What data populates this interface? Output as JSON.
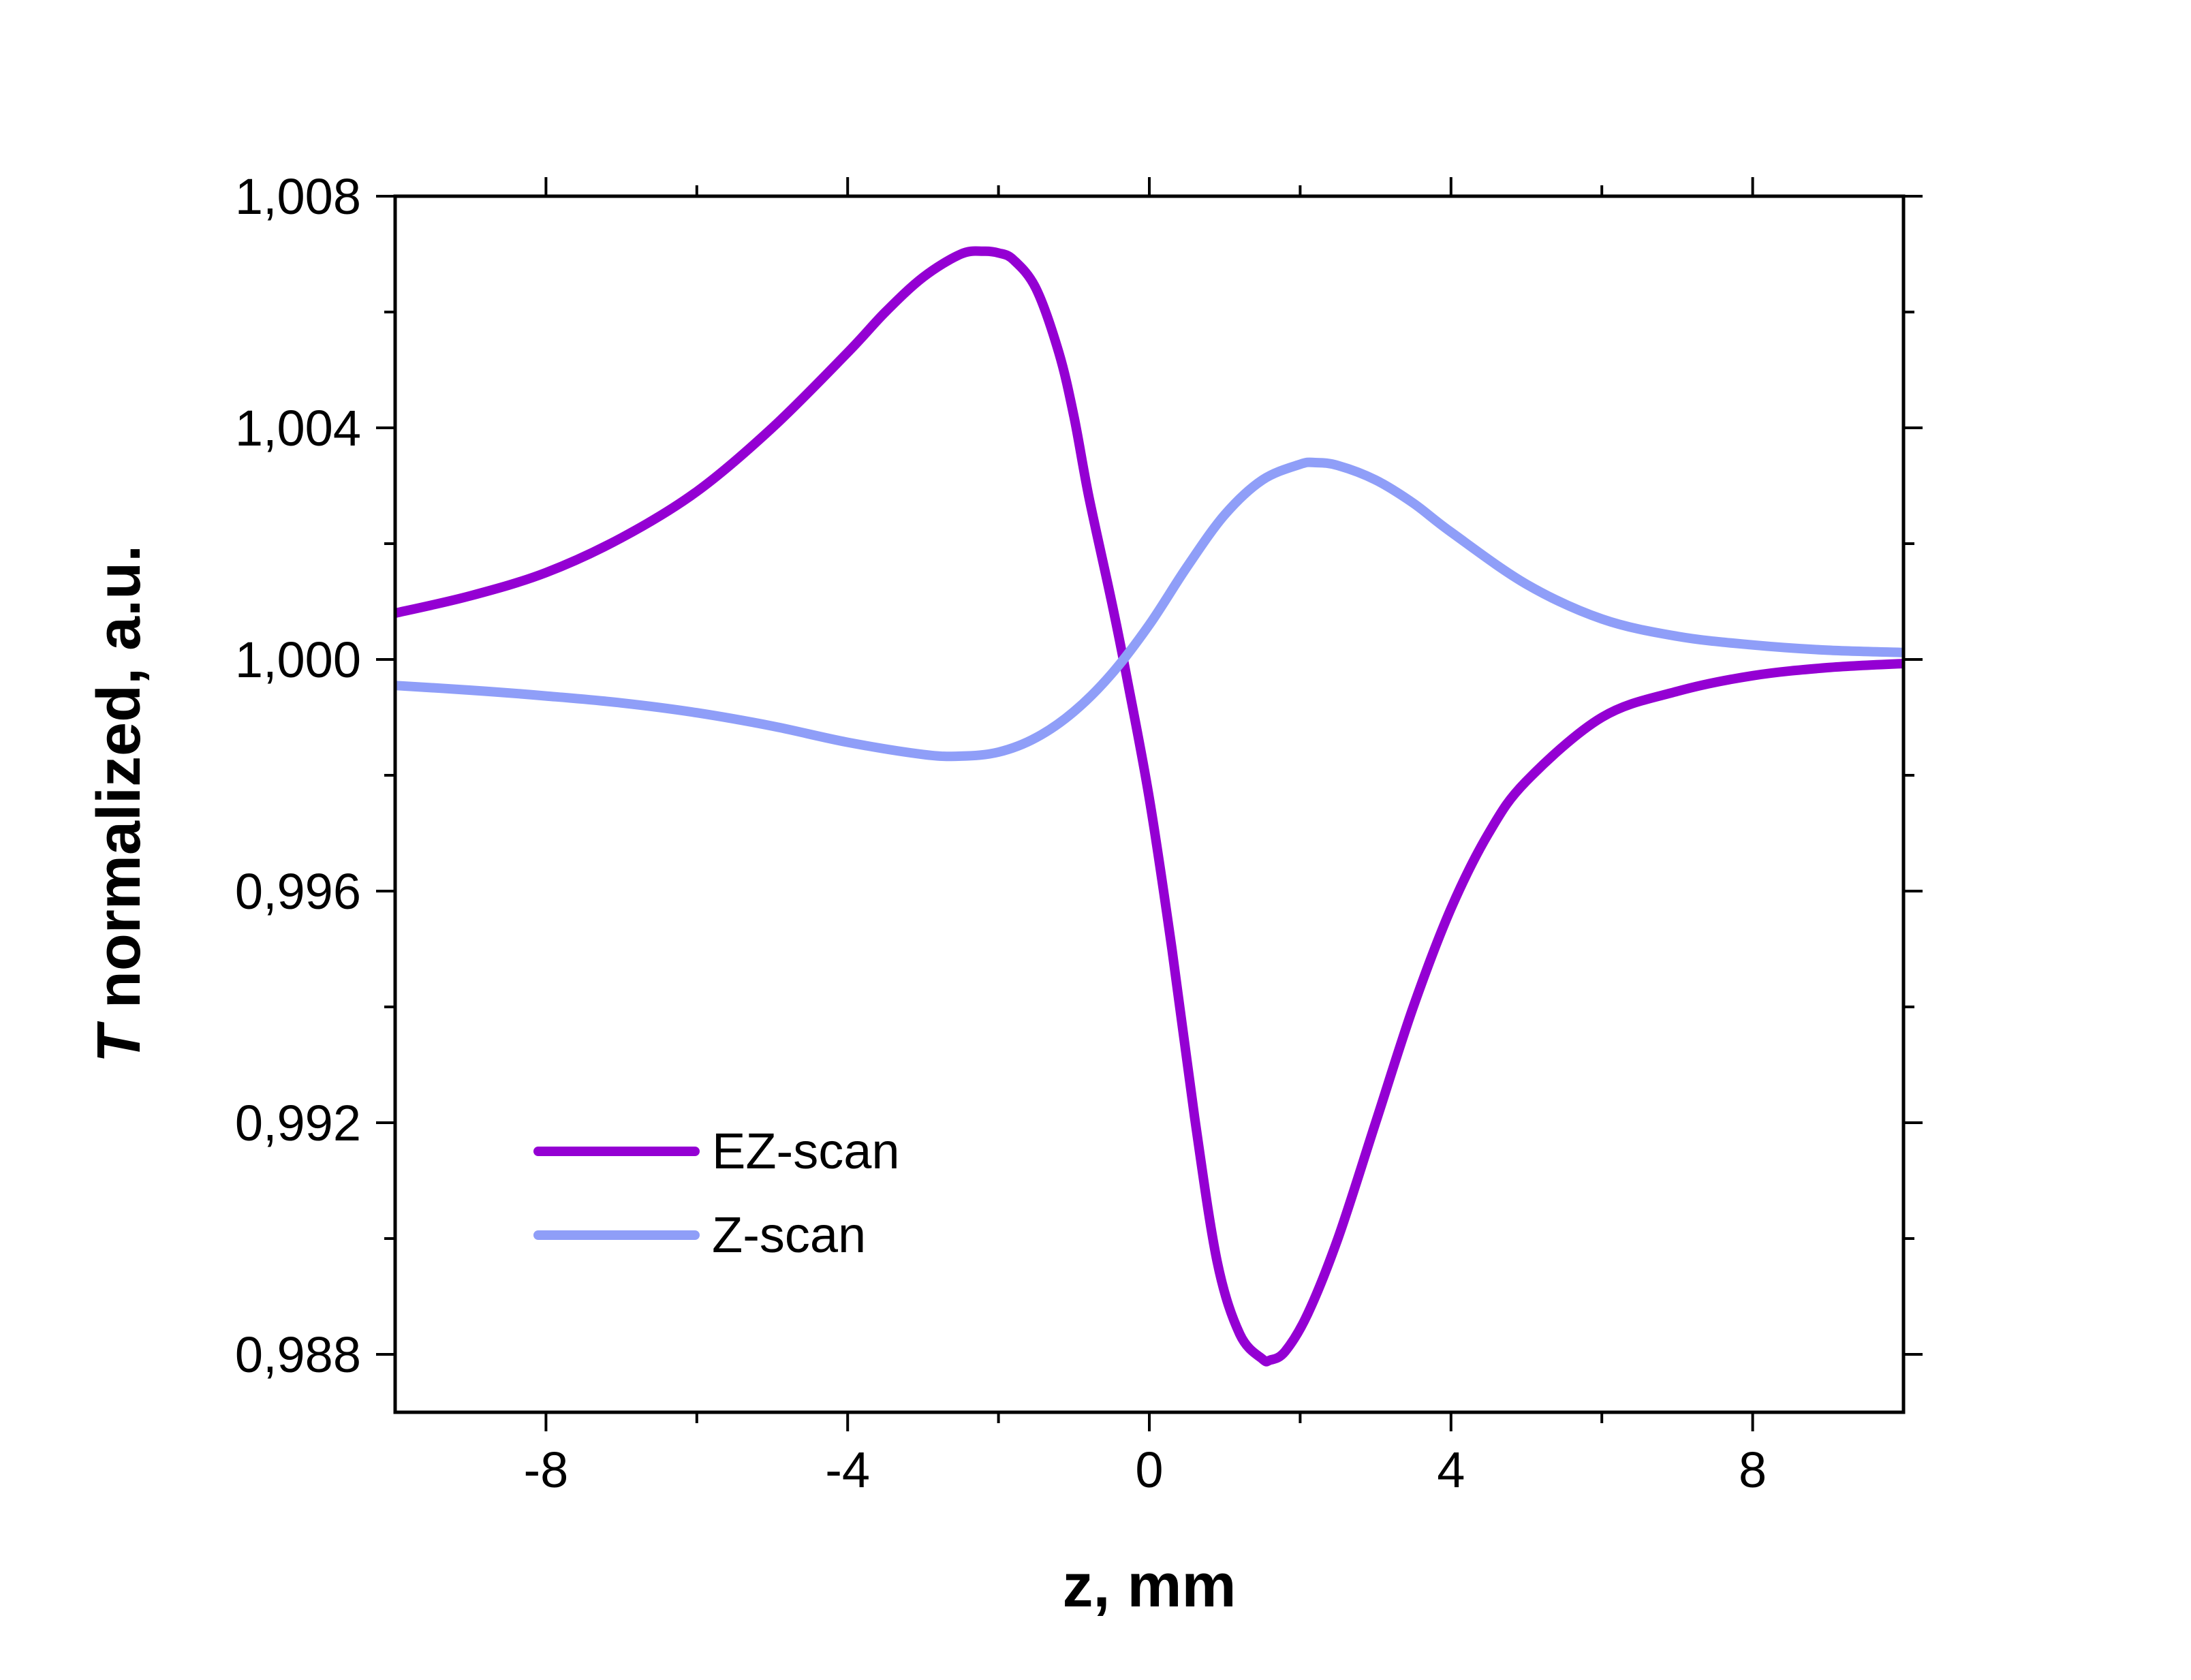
{
  "chart_data": {
    "type": "line",
    "title": "",
    "xlabel": "z, mm",
    "ylabel": {
      "italic_part": "T",
      "rest": " normalized, a.u."
    },
    "xlim": [
      -10,
      10
    ],
    "ylim": [
      0.987,
      1.008
    ],
    "x_ticks": [
      -8,
      -4,
      0,
      4,
      8
    ],
    "x_tick_labels": [
      "-8",
      "-4",
      "0",
      "4",
      "8"
    ],
    "y_ticks": [
      0.988,
      0.992,
      0.996,
      1.0,
      1.004,
      1.008
    ],
    "y_tick_labels": [
      "0,988",
      "0,992",
      "0,996",
      "1,000",
      "1,004",
      "1,008"
    ],
    "grid": false,
    "legend_position": "bottom-left",
    "series": [
      {
        "name": "EZ-scan",
        "color": "#9400D3",
        "x": [
          -10,
          -9,
          -8,
          -7,
          -6,
          -5,
          -4,
          -3.5,
          -3,
          -2.5,
          -2.2,
          -2.0,
          -1.8,
          -1.5,
          -1.2,
          -1.0,
          -0.8,
          -0.5,
          -0.3,
          0.0,
          0.3,
          0.6,
          0.9,
          1.2,
          1.5,
          1.6,
          1.8,
          2.1,
          2.5,
          3.0,
          3.5,
          4.0,
          4.5,
          5.0,
          6.0,
          7.0,
          8.0,
          9.0,
          10.0
        ],
        "y": [
          1.0008,
          1.0011,
          1.0015,
          1.0021,
          1.0029,
          1.004,
          1.0053,
          1.006,
          1.0066,
          1.007,
          1.00705,
          1.00702,
          1.0069,
          1.0064,
          1.0053,
          1.0042,
          1.0028,
          1.001,
          0.9997,
          0.9976,
          0.995,
          0.9921,
          0.9896,
          0.98835,
          0.98792,
          0.9879,
          0.98805,
          0.9887,
          0.99,
          0.992,
          0.994,
          0.9957,
          0.997,
          0.9979,
          0.999,
          0.99945,
          0.99972,
          0.99986,
          0.99993
        ]
      },
      {
        "name": "Z-scan",
        "color": "#8F9EF8",
        "x": [
          -10,
          -9,
          -8,
          -7,
          -6,
          -5,
          -4,
          -3,
          -2.5,
          -2,
          -1.5,
          -1,
          -0.5,
          0,
          0.5,
          1,
          1.5,
          2,
          2.2,
          2.5,
          3,
          3.5,
          4,
          5,
          6,
          7,
          8,
          9,
          10
        ],
        "y": [
          0.99955,
          0.99947,
          0.99937,
          0.99925,
          0.99908,
          0.99885,
          0.99857,
          0.99836,
          0.99833,
          0.9984,
          0.99865,
          0.9991,
          0.99975,
          1.0006,
          1.0016,
          1.0025,
          1.0031,
          1.00337,
          1.0034,
          1.00335,
          1.0031,
          1.0027,
          1.0022,
          1.0013,
          1.0007,
          1.0004,
          1.00025,
          1.00016,
          1.00012
        ]
      }
    ]
  }
}
